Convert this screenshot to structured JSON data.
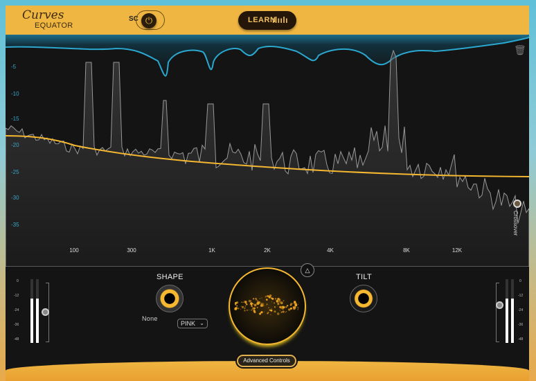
{
  "header": {
    "logo_top": "Curves",
    "logo_bottom": "EQUATOR",
    "sc_label": "SC",
    "learn_label": "LEARN"
  },
  "graph": {
    "y_ticks": [
      "-5",
      "-10",
      "-15",
      "-20",
      "-25",
      "-30",
      "-35"
    ],
    "x_ticks": [
      "100",
      "300",
      "1K",
      "2K",
      "4K",
      "8K",
      "12K"
    ],
    "crossover_label": "Crossover"
  },
  "controls": {
    "shape_label": "SHAPE",
    "shape_value": "None",
    "noise_select": "PINK",
    "tilt_label": "TILT",
    "advanced_label": "Advanced Controls"
  },
  "meters": {
    "ticks": [
      "0",
      "-12",
      "-24",
      "-36",
      "-48"
    ],
    "left_level_db": -12,
    "right_level_db": -12
  },
  "colors": {
    "accent": "#f0b642",
    "curve": "#f5b830",
    "band": "#2aa8d0"
  }
}
